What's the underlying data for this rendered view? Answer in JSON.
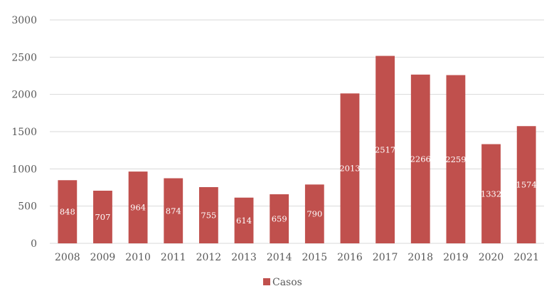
{
  "chart_data": {
    "type": "bar",
    "title": "",
    "xlabel": "",
    "ylabel": "",
    "categories": [
      "2008",
      "2009",
      "2010",
      "2011",
      "2012",
      "2013",
      "2014",
      "2015",
      "2016",
      "2017",
      "2018",
      "2019",
      "2020",
      "2021"
    ],
    "series": [
      {
        "name": "Casos",
        "color": "#c0504d",
        "values": [
          848,
          707,
          964,
          874,
          755,
          614,
          659,
          790,
          2013,
          2517,
          2266,
          2259,
          1332,
          1574
        ]
      }
    ],
    "ylim": [
      0,
      3000
    ],
    "yticks": [
      0,
      500,
      1000,
      1500,
      2000,
      2500,
      3000
    ],
    "grid": true,
    "data_labels": true,
    "legend_position": "bottom"
  }
}
